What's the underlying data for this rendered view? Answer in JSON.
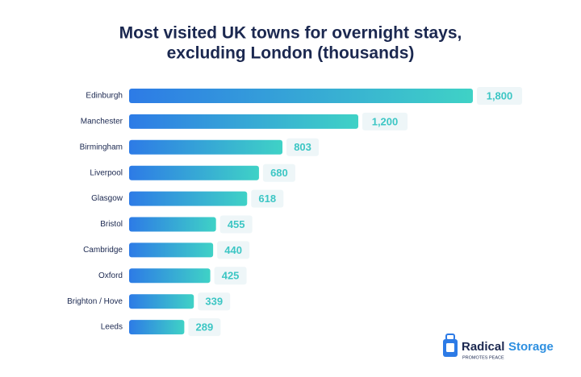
{
  "chart_data": {
    "type": "bar",
    "orientation": "horizontal",
    "title": [
      "Most visited UK towns for overnight stays,",
      "excluding London (thousands)"
    ],
    "categories": [
      "Edinburgh",
      "Manchester",
      "Birmingham",
      "Liverpool",
      "Glasgow",
      "Bristol",
      "Cambridge",
      "Oxford",
      "Brighton / Hove",
      "Leeds"
    ],
    "values": [
      1800,
      1200,
      803,
      680,
      618,
      455,
      440,
      425,
      339,
      289
    ],
    "value_labels": [
      "1,800",
      "1,200",
      "803",
      "680",
      "618",
      "455",
      "440",
      "425",
      "339",
      "289"
    ],
    "color": [
      "#2d7be6",
      "#3fd2c6"
    ]
  },
  "logo": {
    "name": [
      "Radical",
      "Storage"
    ],
    "tagline": "PROMOTES PEACE"
  }
}
